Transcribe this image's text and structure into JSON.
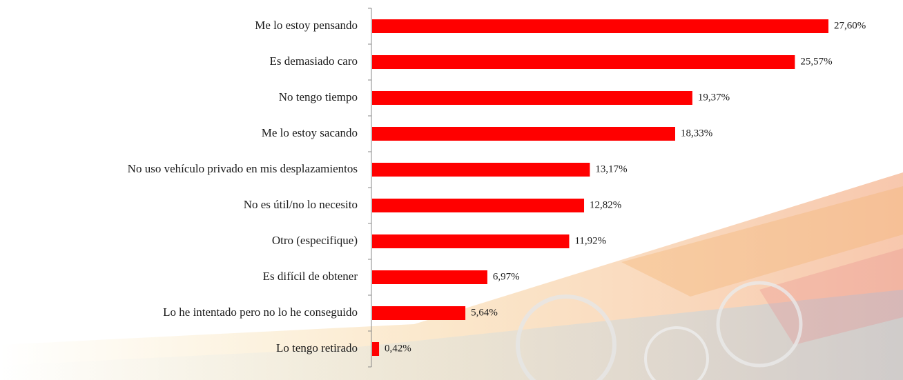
{
  "chart_data": {
    "type": "hbar",
    "categories": [
      "Me lo estoy pensando",
      "Es demasiado caro",
      "No tengo tiempo",
      "Me lo estoy sacando",
      "No uso vehículo privado en mis desplazamientos",
      "No es útil/no lo necesito",
      "Otro (especifique)",
      "Es difícil de obtener",
      "Lo he intentado pero no lo he conseguido",
      "Lo tengo retirado"
    ],
    "values": [
      27.6,
      25.57,
      19.37,
      18.33,
      13.17,
      12.82,
      11.92,
      6.97,
      5.64,
      0.42
    ],
    "value_labels": [
      "27,60%",
      "25,57%",
      "19,37%",
      "18,33%",
      "13,17%",
      "12,82%",
      "11,92%",
      "6,97%",
      "5,64%",
      "0,42%"
    ],
    "color": "#ff0000"
  }
}
